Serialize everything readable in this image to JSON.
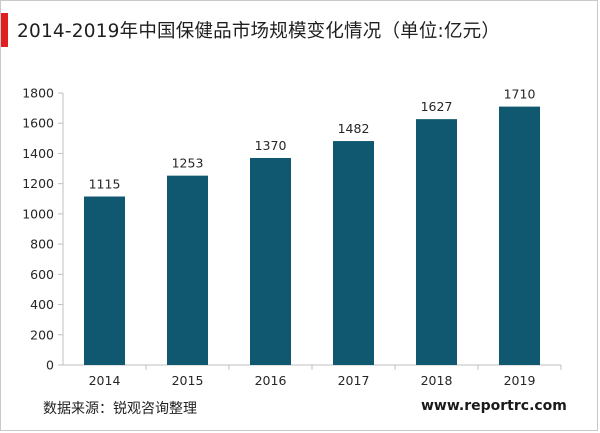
{
  "title": "2014-2019年中国保健品市场规模变化情况（单位:亿元）",
  "source": "数据来源：锐观咨询整理",
  "site": "www.reportrc.com",
  "colors": {
    "bar": "#0f5870",
    "accent": "#e02020",
    "grid": "#d9d9d9",
    "axis": "#bfbfbf"
  },
  "chart_data": {
    "type": "bar",
    "categories": [
      "2014",
      "2015",
      "2016",
      "2017",
      "2018",
      "2019"
    ],
    "values": [
      1115,
      1253,
      1370,
      1482,
      1627,
      1710
    ],
    "title": "2014-2019年中国保健品市场规模变化情况（单位:亿元）",
    "ylim": [
      0,
      1800
    ],
    "yticks": [
      0,
      200,
      400,
      600,
      800,
      1000,
      1200,
      1400,
      1600,
      1800
    ],
    "grid": false,
    "data_labels": true
  }
}
